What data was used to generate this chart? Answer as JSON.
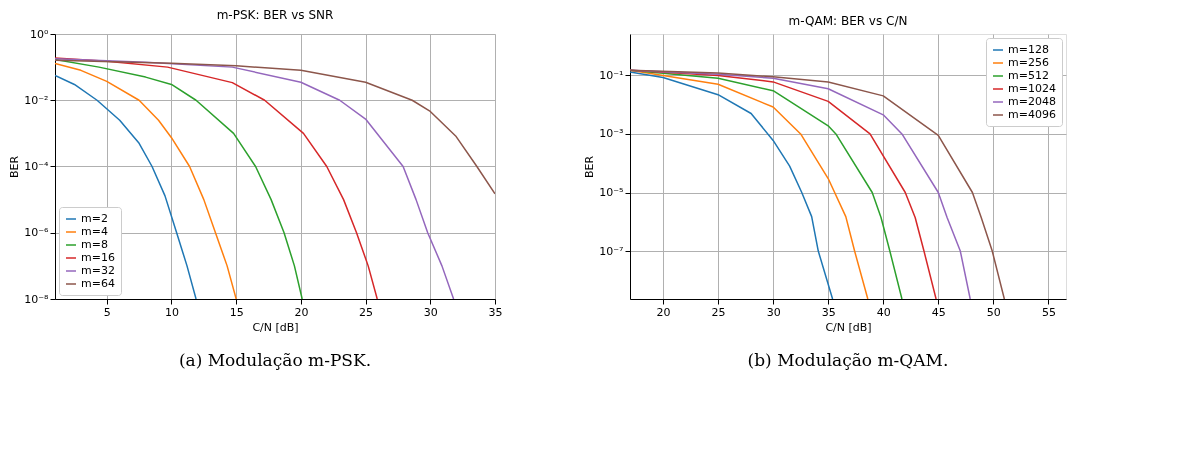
{
  "chart_data": [
    {
      "type": "line",
      "title": "m-PSK: BER vs SNR",
      "xlabel": "C/N [dB]",
      "ylabel": "BER",
      "log": "y",
      "grid": true,
      "legend": "bottom left",
      "xlim": [
        1,
        35
      ],
      "xticks": [
        5,
        10,
        15,
        20,
        25,
        30,
        35
      ],
      "ylim": [
        1e-08,
        1
      ],
      "yticks": [
        {
          "value": 1,
          "label": "10⁰"
        },
        {
          "value": 0.01,
          "label": "10⁻²"
        },
        {
          "value": 0.0001,
          "label": "10⁻⁴"
        },
        {
          "value": 1e-06,
          "label": "10⁻⁶"
        },
        {
          "value": 1e-08,
          "label": "10⁻⁸"
        }
      ],
      "annotations": [
        "(a) Modulação m-PSK."
      ],
      "series": [
        {
          "name": "m=2",
          "color": "#1f77b4",
          "x": [
            1,
            2.5,
            4.25,
            6,
            7.5,
            8.5,
            9.5,
            10.4,
            11.2,
            11.9
          ],
          "values": [
            0.056,
            0.03,
            0.01,
            0.0025,
            0.0005,
            0.0001,
            1.3e-05,
            1e-06,
            1e-07,
            1e-08
          ]
        },
        {
          "name": "m=4",
          "color": "#ff7f0e",
          "x": [
            1,
            3,
            5,
            7.5,
            9,
            10,
            11.4,
            12.5,
            13.4,
            14.3,
            15
          ],
          "values": [
            0.13,
            0.08,
            0.037,
            0.01,
            0.0025,
            0.00074,
            0.0001,
            1e-05,
            1e-06,
            1e-07,
            1e-08
          ]
        },
        {
          "name": "m=8",
          "color": "#2ca02c",
          "x": [
            1,
            4.4,
            8,
            10,
            11.9,
            14.8,
            16.5,
            17.7,
            18.7,
            19.5,
            20.1
          ],
          "values": [
            0.17,
            0.1,
            0.05,
            0.03,
            0.01,
            0.001,
            0.0001,
            1e-05,
            1e-06,
            1e-07,
            1e-08
          ]
        },
        {
          "name": "m=16",
          "color": "#d62728",
          "x": [
            1,
            5,
            9.7,
            14.7,
            17.2,
            20.2,
            22,
            23.3,
            24.3,
            25.2,
            25.9
          ],
          "values": [
            0.19,
            0.15,
            0.1,
            0.034,
            0.01,
            0.001,
            0.0001,
            1e-05,
            1e-06,
            1e-07,
            1e-08
          ]
        },
        {
          "name": "m=32",
          "color": "#9467bd",
          "x": [
            1,
            8,
            14.7,
            20,
            23,
            25,
            27.9,
            28.9,
            29.8,
            30.9,
            31.8
          ],
          "values": [
            0.18,
            0.14,
            0.1,
            0.035,
            0.01,
            0.0027,
            0.0001,
            1e-05,
            1e-06,
            1e-07,
            1e-08
          ]
        },
        {
          "name": "m=64",
          "color": "#8c564b",
          "x": [
            1,
            10,
            15,
            20,
            25,
            28.6,
            30,
            32,
            33.6,
            35
          ],
          "values": [
            0.16,
            0.13,
            0.11,
            0.08,
            0.035,
            0.01,
            0.0046,
            0.0008,
            0.0001,
            1.5e-05
          ]
        }
      ]
    },
    {
      "type": "line",
      "title": "m-QAM: BER vs C/N",
      "xlabel": "C/N [dB]",
      "ylabel": "BER",
      "log": "y",
      "grid": true,
      "legend": "top right",
      "xlim": [
        17,
        56.6
      ],
      "xticks": [
        20,
        25,
        30,
        35,
        40,
        45,
        50,
        55
      ],
      "ylim": [
        2.3e-09,
        2.6
      ],
      "yticks": [
        {
          "value": 0.1,
          "label": "10⁻¹"
        },
        {
          "value": 0.001,
          "label": "10⁻³"
        },
        {
          "value": 1e-05,
          "label": "10⁻⁵"
        },
        {
          "value": 1e-07,
          "label": "10⁻⁷"
        }
      ],
      "annotations": [
        "(b) Modulação m-QAM."
      ],
      "series": [
        {
          "name": "m=128",
          "color": "#1f77b4",
          "x": [
            17,
            20,
            25,
            28,
            30,
            31.5,
            32.6,
            33.5,
            34.1,
            35.4
          ],
          "values": [
            0.13,
            0.085,
            0.022,
            0.005,
            0.0006,
            8e-05,
            1e-05,
            1.5e-06,
            1e-07,
            2.3e-09
          ]
        },
        {
          "name": "m=256",
          "color": "#ff7f0e",
          "x": [
            17,
            25,
            30,
            32.5,
            35,
            36.6,
            37.4,
            38.6
          ],
          "values": [
            0.15,
            0.05,
            0.0083,
            0.001,
            3e-05,
            1.5e-06,
            1e-07,
            2.3e-09
          ]
        },
        {
          "name": "m=512",
          "color": "#2ca02c",
          "x": [
            17,
            25,
            30,
            35,
            35.7,
            39,
            39.8,
            40.6,
            41.7
          ],
          "values": [
            0.15,
            0.08,
            0.03,
            0.0019,
            0.001,
            1e-05,
            1.4e-06,
            1e-07,
            2.3e-09
          ]
        },
        {
          "name": "m=1024",
          "color": "#d62728",
          "x": [
            17,
            25,
            30,
            35,
            38.8,
            42,
            42.9,
            43.7,
            44.8
          ],
          "values": [
            0.15,
            0.1,
            0.06,
            0.013,
            0.001,
            1e-05,
            1.4e-06,
            1e-07,
            2.3e-09
          ]
        },
        {
          "name": "m=2048",
          "color": "#9467bd",
          "x": [
            17,
            25,
            30,
            35,
            40,
            41.7,
            45,
            45.8,
            47,
            47.9
          ],
          "values": [
            0.15,
            0.11,
            0.08,
            0.035,
            0.0045,
            0.001,
            1e-05,
            1.4e-06,
            1e-07,
            2.3e-09
          ]
        },
        {
          "name": "m=4096",
          "color": "#8c564b",
          "x": [
            17,
            25,
            30,
            35,
            40,
            45,
            48.1,
            48.9,
            49.9,
            51
          ],
          "values": [
            0.15,
            0.12,
            0.09,
            0.06,
            0.02,
            0.0009,
            1e-05,
            1.4e-06,
            1e-07,
            2.3e-09
          ]
        }
      ]
    }
  ]
}
